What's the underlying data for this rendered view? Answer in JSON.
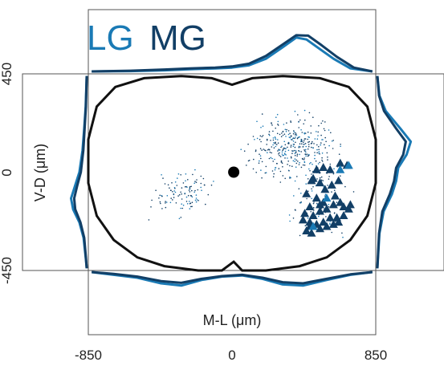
{
  "chart_data": {
    "type": "scatter",
    "legend": [
      {
        "label": "LG",
        "color": "#1a7ab5"
      },
      {
        "label": "MG",
        "color": "#123f66"
      }
    ],
    "xlabel": "M-L (μm)",
    "ylabel": "V-D (μm)",
    "xticks": [
      "-850",
      "0",
      "850"
    ],
    "yticks": [
      "-450",
      "0",
      "450"
    ],
    "xlim": [
      -850,
      850
    ],
    "ylim": [
      -450,
      450
    ],
    "center_marker": {
      "x": 10,
      "y": 0
    },
    "triangles": [
      [
        480,
        -30
      ],
      [
        520,
        -50
      ],
      [
        550,
        -80
      ],
      [
        590,
        -60
      ],
      [
        630,
        -40
      ],
      [
        610,
        -110
      ],
      [
        540,
        -140
      ],
      [
        500,
        -120
      ],
      [
        460,
        -160
      ],
      [
        430,
        -190
      ],
      [
        420,
        -220
      ],
      [
        480,
        -200
      ],
      [
        520,
        -180
      ],
      [
        560,
        -170
      ],
      [
        600,
        -150
      ],
      [
        640,
        -140
      ],
      [
        660,
        -160
      ],
      [
        690,
        -170
      ],
      [
        700,
        -150
      ],
      [
        660,
        -200
      ],
      [
        620,
        -210
      ],
      [
        580,
        -210
      ],
      [
        540,
        -230
      ],
      [
        500,
        -240
      ],
      [
        460,
        -250
      ],
      [
        440,
        -270
      ],
      [
        470,
        -280
      ],
      [
        520,
        -260
      ],
      [
        560,
        -250
      ],
      [
        600,
        -240
      ],
      [
        630,
        -230
      ],
      [
        470,
        -40
      ],
      [
        500,
        10
      ],
      [
        540,
        20
      ],
      [
        580,
        10
      ],
      [
        640,
        40
      ],
      [
        680,
        30
      ],
      [
        520,
        -150
      ],
      [
        460,
        -230
      ],
      [
        440,
        -100
      ]
    ],
    "lg_triangles": [
      [
        690,
        30
      ],
      [
        640,
        10
      ],
      [
        560,
        -120
      ],
      [
        480,
        -250
      ]
    ],
    "dots": {
      "clusters": [
        {
          "cx": -300,
          "cy": -100,
          "sx": 110,
          "sy": 65,
          "n": 110
        },
        {
          "cx": 360,
          "cy": 110,
          "sx": 170,
          "sy": 95,
          "n": 360
        },
        {
          "cx": 520,
          "cy": -130,
          "sx": 110,
          "sy": 105,
          "n": 120
        }
      ]
    },
    "marginal_top": {
      "LG": [
        [
          -830,
          0.02
        ],
        [
          -600,
          0.03
        ],
        [
          -400,
          0.05
        ],
        [
          -250,
          0.08
        ],
        [
          -100,
          0.1
        ],
        [
          0,
          0.12
        ],
        [
          100,
          0.18
        ],
        [
          200,
          0.35
        ],
        [
          300,
          0.65
        ],
        [
          380,
          0.9
        ],
        [
          440,
          0.85
        ],
        [
          520,
          0.6
        ],
        [
          600,
          0.35
        ],
        [
          700,
          0.1
        ],
        [
          830,
          0.02
        ]
      ],
      "MG": [
        [
          -830,
          0.02
        ],
        [
          -600,
          0.04
        ],
        [
          -400,
          0.07
        ],
        [
          -250,
          0.1
        ],
        [
          -100,
          0.12
        ],
        [
          0,
          0.15
        ],
        [
          100,
          0.22
        ],
        [
          200,
          0.42
        ],
        [
          300,
          0.72
        ],
        [
          380,
          0.96
        ],
        [
          450,
          0.95
        ],
        [
          530,
          0.7
        ],
        [
          620,
          0.4
        ],
        [
          720,
          0.12
        ],
        [
          830,
          0.02
        ]
      ]
    },
    "marginal_bottom": {
      "LG": [
        [
          -830,
          0.0
        ],
        [
          -700,
          0.12
        ],
        [
          -560,
          0.25
        ],
        [
          -420,
          0.5
        ],
        [
          -300,
          0.6
        ],
        [
          -180,
          0.35
        ],
        [
          -60,
          0.2
        ],
        [
          60,
          0.15
        ],
        [
          180,
          0.3
        ],
        [
          300,
          0.55
        ],
        [
          420,
          0.6
        ],
        [
          560,
          0.35
        ],
        [
          700,
          0.12
        ],
        [
          830,
          0.0
        ]
      ],
      "MG": [
        [
          -830,
          0.0
        ],
        [
          -700,
          0.08
        ],
        [
          -560,
          0.2
        ],
        [
          -420,
          0.4
        ],
        [
          -300,
          0.48
        ],
        [
          -180,
          0.3
        ],
        [
          -60,
          0.18
        ],
        [
          60,
          0.12
        ],
        [
          180,
          0.25
        ],
        [
          300,
          0.45
        ],
        [
          420,
          0.5
        ],
        [
          560,
          0.3
        ],
        [
          700,
          0.1
        ],
        [
          830,
          0.0
        ]
      ]
    },
    "marginal_left": {
      "LG": [
        [
          440,
          0.0
        ],
        [
          300,
          0.05
        ],
        [
          200,
          0.12
        ],
        [
          100,
          0.2
        ],
        [
          0,
          0.35
        ],
        [
          -60,
          0.55
        ],
        [
          -120,
          0.75
        ],
        [
          -170,
          0.65
        ],
        [
          -230,
          0.35
        ],
        [
          -300,
          0.15
        ],
        [
          -400,
          0.04
        ],
        [
          -440,
          0.0
        ]
      ],
      "MG": [
        [
          440,
          0.0
        ],
        [
          300,
          0.04
        ],
        [
          200,
          0.1
        ],
        [
          100,
          0.16
        ],
        [
          0,
          0.28
        ],
        [
          -60,
          0.45
        ],
        [
          -120,
          0.6
        ],
        [
          -170,
          0.55
        ],
        [
          -230,
          0.3
        ],
        [
          -300,
          0.12
        ],
        [
          -400,
          0.03
        ],
        [
          -440,
          0.0
        ]
      ]
    },
    "marginal_right": {
      "LG": [
        [
          440,
          0.0
        ],
        [
          350,
          0.05
        ],
        [
          280,
          0.2
        ],
        [
          200,
          0.55
        ],
        [
          140,
          0.8
        ],
        [
          80,
          0.7
        ],
        [
          20,
          0.5
        ],
        [
          -40,
          0.45
        ],
        [
          -100,
          0.35
        ],
        [
          -180,
          0.15
        ],
        [
          -280,
          0.05
        ],
        [
          -440,
          0.0
        ]
      ],
      "MG": [
        [
          440,
          0.0
        ],
        [
          350,
          0.04
        ],
        [
          280,
          0.16
        ],
        [
          200,
          0.45
        ],
        [
          140,
          0.68
        ],
        [
          80,
          0.62
        ],
        [
          20,
          0.45
        ],
        [
          -40,
          0.4
        ],
        [
          -100,
          0.3
        ],
        [
          -180,
          0.12
        ],
        [
          -280,
          0.04
        ],
        [
          -440,
          0.0
        ]
      ]
    }
  }
}
